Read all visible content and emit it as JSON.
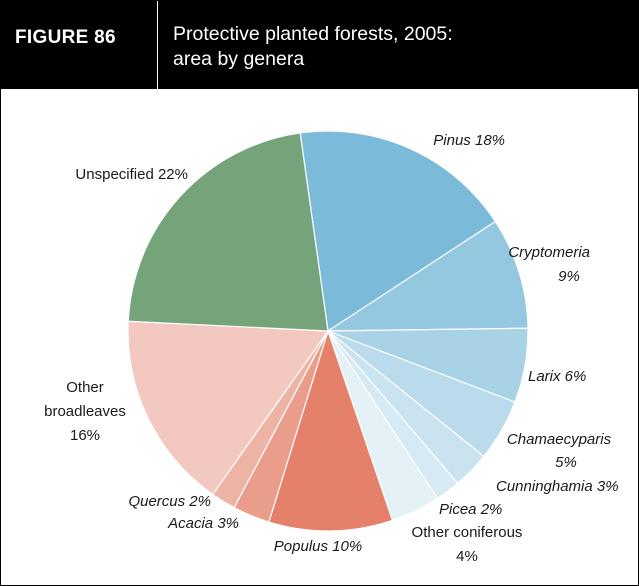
{
  "figure": {
    "label": "FIGURE 86",
    "title_line1": "Protective planted forests, 2005:",
    "title_line2": "area by genera"
  },
  "chart_data": {
    "type": "pie",
    "title": "Protective planted forests, 2005: area by genera",
    "slices": [
      {
        "label": "Pinus",
        "value": 18,
        "color": "#7bbad9",
        "italic": true
      },
      {
        "label": "Cryptomeria",
        "value": 9,
        "color": "#94c7e0",
        "italic": true
      },
      {
        "label": "Larix",
        "value": 6,
        "color": "#a8d2e6",
        "italic": true
      },
      {
        "label": "Chamaecyparis",
        "value": 5,
        "color": "#b9dbeb",
        "italic": true
      },
      {
        "label": "Cunninghamia",
        "value": 3,
        "color": "#c9e3ef",
        "italic": true
      },
      {
        "label": "Picea",
        "value": 2,
        "color": "#d6eaf3",
        "italic": true
      },
      {
        "label": "Other coniferous",
        "value": 4,
        "color": "#e4f1f7",
        "italic": false
      },
      {
        "label": "Populus",
        "value": 10,
        "color": "#e5806b",
        "italic": true
      },
      {
        "label": "Acacia",
        "value": 3,
        "color": "#e99d8a",
        "italic": true
      },
      {
        "label": "Quercus",
        "value": 2,
        "color": "#edb3a5",
        "italic": true
      },
      {
        "label": "Other broadleaves",
        "value": 16,
        "color": "#f3c8c0",
        "italic": false
      },
      {
        "label": "Unspecified",
        "value": 22,
        "color": "#75a47b",
        "italic": false
      }
    ],
    "label_text": {
      "pinus": "Pinus 18%",
      "cryptomeria_1": "Cryptomeria",
      "cryptomeria_2": "9%",
      "larix": "Larix 6%",
      "chamaecyparis_1": "Chamaecyparis",
      "chamaecyparis_2": "5%",
      "cunninghamia": "Cunninghamia 3%",
      "picea": "Picea 2%",
      "other_coniferous_1": "Other coniferous",
      "other_coniferous_2": "4%",
      "populus": "Populus 10%",
      "acacia": "Acacia 3%",
      "quercus": "Quercus 2%",
      "other_broadleaves_1": "Other",
      "other_broadleaves_2": "broadleaves",
      "other_broadleaves_3": "16%",
      "unspecified": "Unspecified 22%"
    }
  }
}
